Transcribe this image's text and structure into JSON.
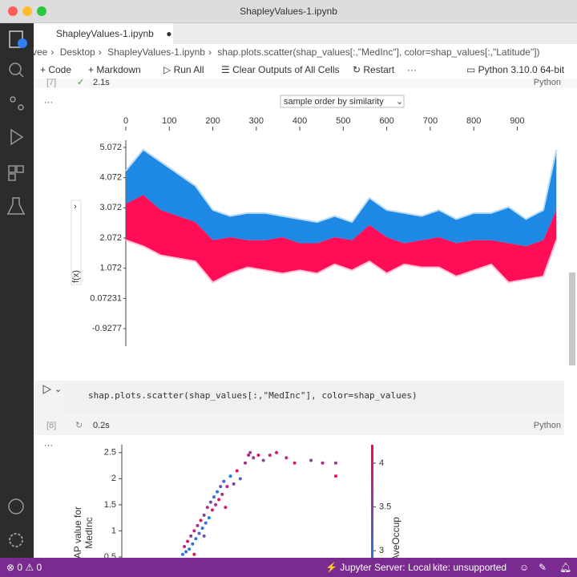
{
  "window_title": "ShapleyValues-1.ipynb",
  "tab": {
    "label": "ShapleyValues-1.ipynb"
  },
  "breadcrumb": [
    "vee",
    "Desktop",
    "ShapleyValues-1.ipynb",
    "shap.plots.scatter(shap_values[:,\"MedInc\"], color=shap_values[:,\"Latitude\"])"
  ],
  "toolbar": [
    "Code",
    "Markdown",
    "Run All",
    "Clear Outputs of All Cells",
    "Restart"
  ],
  "kernel": "Python 3.10.0 64-bit",
  "cells": [
    {
      "count": "[7]",
      "time": "2.1s",
      "language": "Python"
    },
    {
      "code": "shap.plots.scatter(shap_values[:,\"MedInc\"], color=shap_values)",
      "count": "[8]",
      "time": "0.2s",
      "language": "Python"
    }
  ],
  "force_plot": {
    "type": "area",
    "dropdown": "sample order by similarity",
    "ylabel": "f(x)",
    "x": [
      0,
      40,
      80,
      120,
      160,
      200,
      240,
      280,
      320,
      360,
      400,
      440,
      480,
      520,
      560,
      600,
      640,
      680,
      720,
      760,
      800,
      840,
      880,
      920,
      960,
      990
    ],
    "upper": [
      4.3,
      5.0,
      4.6,
      4.2,
      3.8,
      3.0,
      2.8,
      2.9,
      2.9,
      2.8,
      2.7,
      2.6,
      2.8,
      2.6,
      3.4,
      3.0,
      2.9,
      2.8,
      3.0,
      2.7,
      2.9,
      2.9,
      3.1,
      2.7,
      3.0,
      5.0
    ],
    "fx": [
      3.2,
      3.5,
      3.0,
      2.8,
      2.6,
      2.0,
      2.1,
      2.0,
      2.0,
      2.1,
      1.9,
      1.9,
      2.1,
      2.0,
      2.5,
      2.1,
      1.9,
      2.0,
      2.1,
      1.9,
      2.0,
      2.0,
      1.9,
      1.8,
      2.0,
      3.0
    ],
    "lower": [
      2.0,
      1.8,
      1.5,
      1.4,
      1.3,
      0.6,
      0.9,
      1.1,
      1.0,
      0.9,
      1.0,
      0.9,
      1.2,
      1.0,
      1.3,
      0.9,
      1.2,
      1.1,
      1.1,
      0.8,
      1.0,
      1.2,
      0.6,
      0.7,
      0.8,
      2.0
    ],
    "colors": {
      "positive": "#ff0d57",
      "negative": "#1e88e5",
      "positive_edge": "#ffc3d5",
      "negative_edge": "#b8dbf6"
    },
    "xlim": [
      0,
      995
    ],
    "xticks": [
      0,
      100,
      200,
      300,
      400,
      500,
      600,
      700,
      800,
      900
    ],
    "ylim": [
      -1.51,
      5.31
    ],
    "yticks": [
      5.072,
      4.072,
      3.072,
      2.072,
      1.072,
      0.07231,
      -0.9277
    ]
  },
  "scatter_plot": {
    "type": "scatter",
    "ylabel": [
      "SHAP value for",
      "MedInc"
    ],
    "colorbar_label": "AveOccup",
    "x": [
      3.7,
      3.8,
      3.9,
      4.0,
      4.1,
      4.2,
      4.3,
      4.4,
      4.5,
      4.6,
      4.7,
      4.8,
      4.9,
      5.0,
      5.1,
      5.2,
      5.3,
      5.4,
      5.5,
      5.6,
      5.7,
      5.8,
      5.9,
      6.0,
      6.1,
      6.2,
      6.4,
      6.6,
      6.8,
      7.0,
      7.2,
      7.5,
      7.7,
      8.0,
      8.3,
      8.6,
      9.0,
      9.4,
      10.0,
      10.5,
      11.5,
      12.2,
      13.0,
      13.0,
      6.3,
      5.0,
      4.4,
      7.8
    ],
    "values": [
      0.55,
      0.7,
      0.6,
      0.8,
      0.65,
      0.9,
      0.75,
      1.0,
      0.85,
      1.1,
      0.95,
      1.2,
      1.05,
      1.3,
      1.15,
      1.45,
      1.25,
      1.55,
      1.4,
      1.65,
      1.5,
      1.75,
      1.6,
      1.85,
      1.7,
      1.95,
      1.85,
      2.05,
      1.9,
      2.15,
      2.0,
      2.3,
      2.45,
      2.4,
      2.45,
      2.35,
      2.45,
      2.5,
      2.4,
      2.3,
      2.35,
      2.3,
      2.05,
      2.3,
      1.45,
      0.9,
      0.55,
      2.5
    ],
    "color_values": [
      2.9,
      3.8,
      3.1,
      4.0,
      2.8,
      3.6,
      3.0,
      3.9,
      2.9,
      3.7,
      3.2,
      4.1,
      2.9,
      3.5,
      3.0,
      3.8,
      2.8,
      3.4,
      3.9,
      3.0,
      3.6,
      2.9,
      4.0,
      3.3,
      3.7,
      3.1,
      3.8,
      2.9,
      3.5,
      4.0,
      3.2,
      3.7,
      3.9,
      3.6,
      4.1,
      3.4,
      3.8,
      4.0,
      3.7,
      3.9,
      3.5,
      3.8,
      4.2,
      3.6,
      3.9,
      3.3,
      4.0,
      3.5
    ],
    "colors": {
      "low": "#008bfc",
      "high": "#ff0052"
    },
    "xlim": [
      0,
      15
    ],
    "ylim": [
      0.3,
      2.65
    ],
    "yticks": [
      2.5,
      2.0,
      1.5,
      1.0,
      0.5
    ],
    "clim": [
      2.7,
      4.21
    ],
    "cticks": [
      4.0,
      3.5,
      3.0
    ]
  },
  "status": {
    "errors": "0",
    "warnings": "0",
    "server": "Jupyter Server: Local",
    "kite": "kite: unsupported"
  }
}
